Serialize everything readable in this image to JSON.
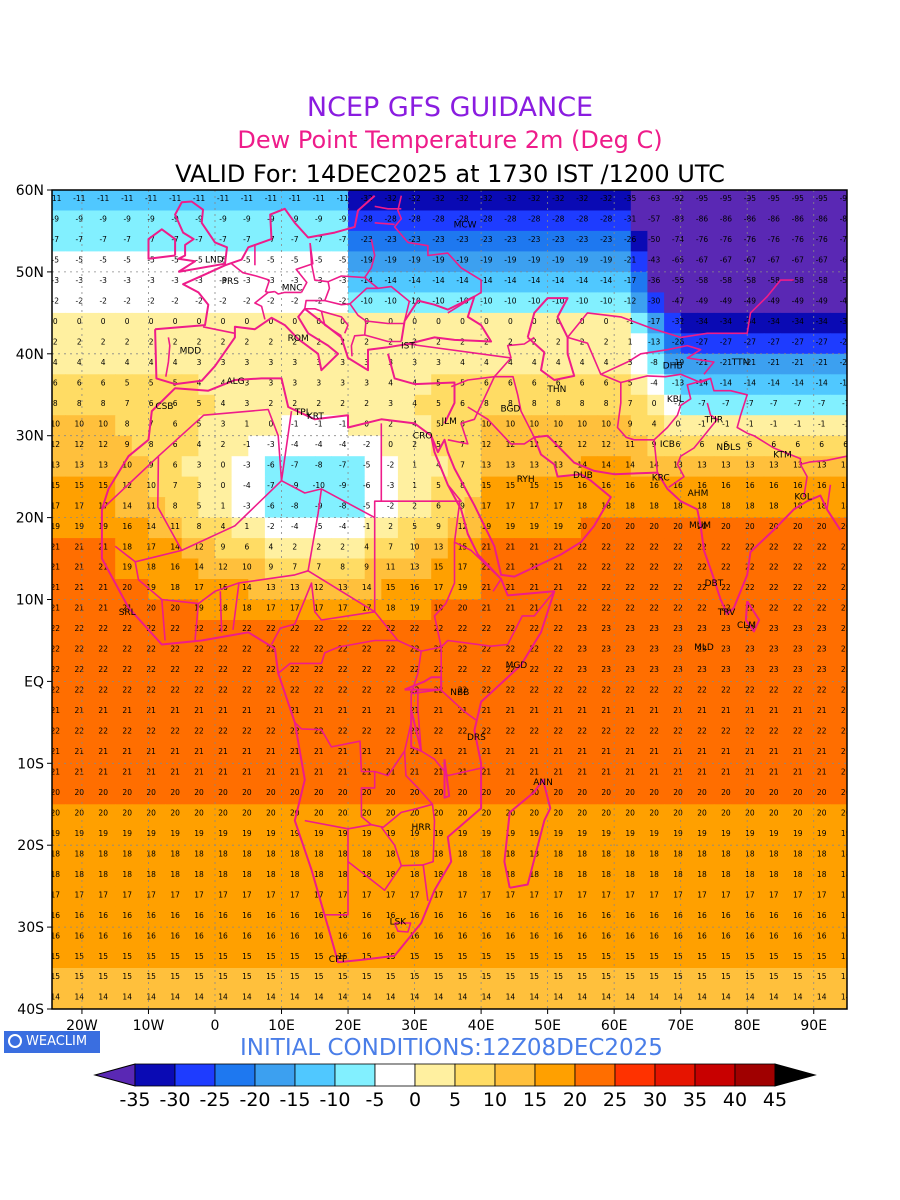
{
  "titles": {
    "line1": "NCEP GFS GUIDANCE",
    "line2": "Dew Point Temperature 2m (Deg C)",
    "line3": "VALID For: 14DEC2025 at 1730 IST /1200 UTC"
  },
  "initial_conditions": "INITIAL CONDITIONS:12Z08DEC2025",
  "logo_text": "WEACLIM",
  "axes": {
    "lat_labels": [
      "60N",
      "50N",
      "40N",
      "30N",
      "20N",
      "10N",
      "EQ",
      "10S",
      "20S",
      "30S",
      "40S"
    ],
    "lon_labels": [
      "20W",
      "10W",
      "0",
      "10E",
      "20E",
      "30E",
      "40E",
      "50E",
      "60E",
      "70E",
      "80E",
      "90E"
    ]
  },
  "colorbar": {
    "labels": [
      "-35",
      "-30",
      "-25",
      "-20",
      "-15",
      "-10",
      "-5",
      "0",
      "5",
      "10",
      "15",
      "20",
      "25",
      "30",
      "35",
      "40",
      "45"
    ],
    "colors": [
      "#0a0ab4",
      "#1e3cff",
      "#1e78f0",
      "#3ca0f0",
      "#50c8ff",
      "#82f0ff",
      "#ffffff",
      "#fff0a0",
      "#ffdc64",
      "#ffc03c",
      "#ffa000",
      "#ff6e00",
      "#ff3200",
      "#e61400",
      "#c80000",
      "#a00000"
    ],
    "under_color": "#5a28b4",
    "over_color": "#000000"
  },
  "stations": [
    {
      "name": "LND",
      "lat": 51.5,
      "lon": -0.1
    },
    {
      "name": "PRS",
      "lat": 48.9,
      "lon": 2.3
    },
    {
      "name": "MNC",
      "lat": 48.1,
      "lon": 11.6
    },
    {
      "name": "MCW",
      "lat": 55.8,
      "lon": 37.6
    },
    {
      "name": "ROM",
      "lat": 41.9,
      "lon": 12.5
    },
    {
      "name": "MDD",
      "lat": 40.4,
      "lon": -3.7
    },
    {
      "name": "IST",
      "lat": 41.0,
      "lon": 29.0
    },
    {
      "name": "ALG",
      "lat": 36.7,
      "lon": 3.1
    },
    {
      "name": "CSB",
      "lat": 33.6,
      "lon": -7.6
    },
    {
      "name": "TPL",
      "lat": 32.9,
      "lon": 13.2
    },
    {
      "name": "KRT",
      "lat": 32.4,
      "lon": 15.1
    },
    {
      "name": "CRO",
      "lat": 30.0,
      "lon": 31.2
    },
    {
      "name": "JLM",
      "lat": 31.8,
      "lon": 35.2
    },
    {
      "name": "BGD",
      "lat": 33.3,
      "lon": 44.4
    },
    {
      "name": "THN",
      "lat": 35.7,
      "lon": 51.4
    },
    {
      "name": "DHB",
      "lat": 38.6,
      "lon": 68.8
    },
    {
      "name": "TTN",
      "lat": 39.0,
      "lon": 79.0
    },
    {
      "name": "KBL",
      "lat": 34.5,
      "lon": 69.2
    },
    {
      "name": "THR",
      "lat": 32.0,
      "lon": 75.0
    },
    {
      "name": "ICB",
      "lat": 29.0,
      "lon": 68.0
    },
    {
      "name": "NDLS",
      "lat": 28.6,
      "lon": 77.2
    },
    {
      "name": "KTM",
      "lat": 27.7,
      "lon": 85.3
    },
    {
      "name": "RYH",
      "lat": 24.7,
      "lon": 46.7
    },
    {
      "name": "DUB",
      "lat": 25.2,
      "lon": 55.3
    },
    {
      "name": "KRC",
      "lat": 24.9,
      "lon": 67.0
    },
    {
      "name": "AHM",
      "lat": 23.0,
      "lon": 72.6
    },
    {
      "name": "KOL",
      "lat": 22.6,
      "lon": 88.4
    },
    {
      "name": "MUM",
      "lat": 19.1,
      "lon": 72.9
    },
    {
      "name": "DBT",
      "lat": 12.0,
      "lon": 75.0
    },
    {
      "name": "TRV",
      "lat": 8.5,
      "lon": 76.9
    },
    {
      "name": "CLM",
      "lat": 6.9,
      "lon": 79.9
    },
    {
      "name": "MLD",
      "lat": 4.2,
      "lon": 73.5
    },
    {
      "name": "SRL",
      "lat": 8.5,
      "lon": -13.2
    },
    {
      "name": "MGD",
      "lat": 2.0,
      "lon": 45.3
    },
    {
      "name": "NBB",
      "lat": -1.3,
      "lon": 36.8
    },
    {
      "name": "DRS",
      "lat": -6.8,
      "lon": 39.3
    },
    {
      "name": "ANN",
      "lat": -12.3,
      "lon": 49.3
    },
    {
      "name": "HRR",
      "lat": -17.8,
      "lon": 31.0
    },
    {
      "name": "LSK",
      "lat": -29.3,
      "lon": 27.5
    },
    {
      "name": "CPT",
      "lat": -33.9,
      "lon": 18.4
    }
  ]
}
